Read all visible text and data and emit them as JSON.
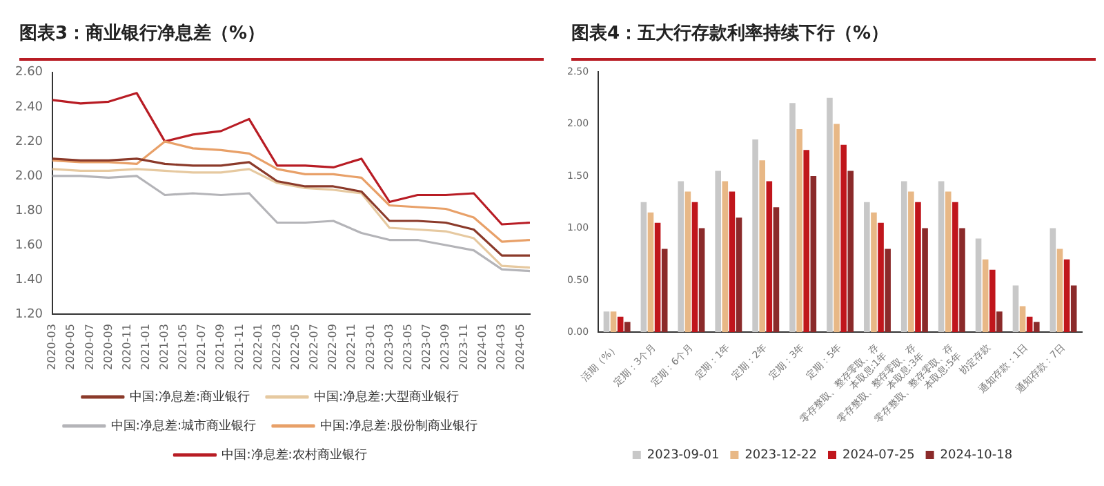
{
  "chart_data": [
    {
      "type": "line",
      "title": "图表3：商业银行净息差（%）",
      "x": [
        "2020-03",
        "2020-06",
        "2020-09",
        "2020-12",
        "2021-03",
        "2021-06",
        "2021-09",
        "2021-12",
        "2022-03",
        "2022-06",
        "2022-09",
        "2022-12",
        "2023-03",
        "2023-06",
        "2023-09",
        "2023-12",
        "2024-03",
        "2024-06"
      ],
      "series": [
        {
          "name": "中国:净息差:商业银行",
          "color": "#8b3a2a",
          "values": [
            2.1,
            2.09,
            2.09,
            2.1,
            2.07,
            2.06,
            2.06,
            2.08,
            1.97,
            1.94,
            1.94,
            1.91,
            1.74,
            1.74,
            1.73,
            1.69,
            1.54,
            1.54
          ]
        },
        {
          "name": "中国:净息差:大型商业银行",
          "color": "#e6c9a0",
          "values": [
            2.04,
            2.03,
            2.03,
            2.04,
            2.03,
            2.02,
            2.02,
            2.04,
            1.96,
            1.93,
            1.92,
            1.9,
            1.7,
            1.69,
            1.68,
            1.64,
            1.48,
            1.47
          ]
        },
        {
          "name": "中国:净息差:城市商业银行",
          "color": "#b4b4b8",
          "values": [
            2.0,
            2.0,
            1.99,
            2.0,
            1.89,
            1.9,
            1.89,
            1.9,
            1.73,
            1.73,
            1.74,
            1.67,
            1.63,
            1.63,
            1.6,
            1.57,
            1.46,
            1.45
          ]
        },
        {
          "name": "中国:净息差:股份制商业银行",
          "color": "#e8a068",
          "values": [
            2.09,
            2.08,
            2.08,
            2.07,
            2.2,
            2.16,
            2.15,
            2.13,
            2.04,
            2.01,
            2.01,
            1.99,
            1.83,
            1.82,
            1.81,
            1.76,
            1.62,
            1.63
          ]
        },
        {
          "name": "中国:净息差:农村商业银行",
          "color": "#b81c24",
          "values": [
            2.44,
            2.42,
            2.43,
            2.48,
            2.2,
            2.24,
            2.26,
            2.33,
            2.06,
            2.06,
            2.05,
            2.1,
            1.85,
            1.89,
            1.89,
            1.9,
            1.72,
            1.73
          ]
        }
      ],
      "xlim": [
        "2020-03",
        "2024-06"
      ],
      "xticks": [
        "2020-03",
        "2020-05",
        "2020-07",
        "2020-09",
        "2020-11",
        "2021-01",
        "2021-03",
        "2021-05",
        "2021-07",
        "2021-09",
        "2021-11",
        "2022-01",
        "2022-03",
        "2022-05",
        "2022-07",
        "2022-09",
        "2022-11",
        "2023-01",
        "2023-03",
        "2023-05",
        "2023-07",
        "2023-09",
        "2023-11",
        "2024-01",
        "2024-03",
        "2024-05"
      ],
      "ylim": [
        1.2,
        2.6
      ],
      "yticks": [
        {
          "value": 1.2,
          "label": "1.20"
        },
        {
          "value": 1.4,
          "label": "1.40"
        },
        {
          "value": 1.6,
          "label": "1.60"
        },
        {
          "value": 1.8,
          "label": "1.80"
        },
        {
          "value": 2.0,
          "label": "2.00"
        },
        {
          "value": 2.2,
          "label": "2.20"
        },
        {
          "value": 2.4,
          "label": "2.40"
        },
        {
          "value": 2.6,
          "label": "2.60"
        }
      ],
      "grid": false,
      "legend": "bottom",
      "marker": "none",
      "line_style": "solid"
    },
    {
      "type": "bar",
      "title": "图表4：五大行存款利率持续下行（%）",
      "categories": [
        "活期（%）",
        "定期：3个月",
        "定期：6个月",
        "定期：1年",
        "定期：2年",
        "定期：3年",
        "定期：5年",
        "零存整取、整存零取、存本取息:1年",
        "零存整取、整存零取、存本取息:3年",
        "零存整取、整存零取、存本取息:5年",
        "协定存款",
        "通知存款：1日",
        "通知存款：7日"
      ],
      "series": [
        {
          "name": "2023-09-01",
          "color": "#c8c8c8",
          "values": [
            0.2,
            1.25,
            1.45,
            1.55,
            1.85,
            2.2,
            2.25,
            1.25,
            1.45,
            1.45,
            0.9,
            0.45,
            1.0
          ]
        },
        {
          "name": "2023-12-22",
          "color": "#e8b886",
          "values": [
            0.2,
            1.15,
            1.35,
            1.45,
            1.65,
            1.95,
            2.0,
            1.15,
            1.35,
            1.35,
            0.7,
            0.25,
            0.8
          ]
        },
        {
          "name": "2024-07-25",
          "color": "#c0161c",
          "values": [
            0.15,
            1.05,
            1.25,
            1.35,
            1.45,
            1.75,
            1.8,
            1.05,
            1.25,
            1.25,
            0.6,
            0.15,
            0.7
          ]
        },
        {
          "name": "2024-10-18",
          "color": "#8b2a2a",
          "values": [
            0.1,
            0.8,
            1.0,
            1.1,
            1.2,
            1.5,
            1.55,
            0.8,
            1.0,
            1.0,
            0.2,
            0.1,
            0.45
          ]
        }
      ],
      "ylim": [
        0,
        2.5
      ],
      "yticks": [
        {
          "value": 0,
          "label": "0.00"
        },
        {
          "value": 0.5,
          "label": "0.50"
        },
        {
          "value": 1.0,
          "label": "1.00"
        },
        {
          "value": 1.5,
          "label": "1.50"
        },
        {
          "value": 2.0,
          "label": "2.00"
        },
        {
          "value": 2.5,
          "label": "2.50"
        }
      ],
      "grid": false,
      "legend": "bottom"
    }
  ]
}
